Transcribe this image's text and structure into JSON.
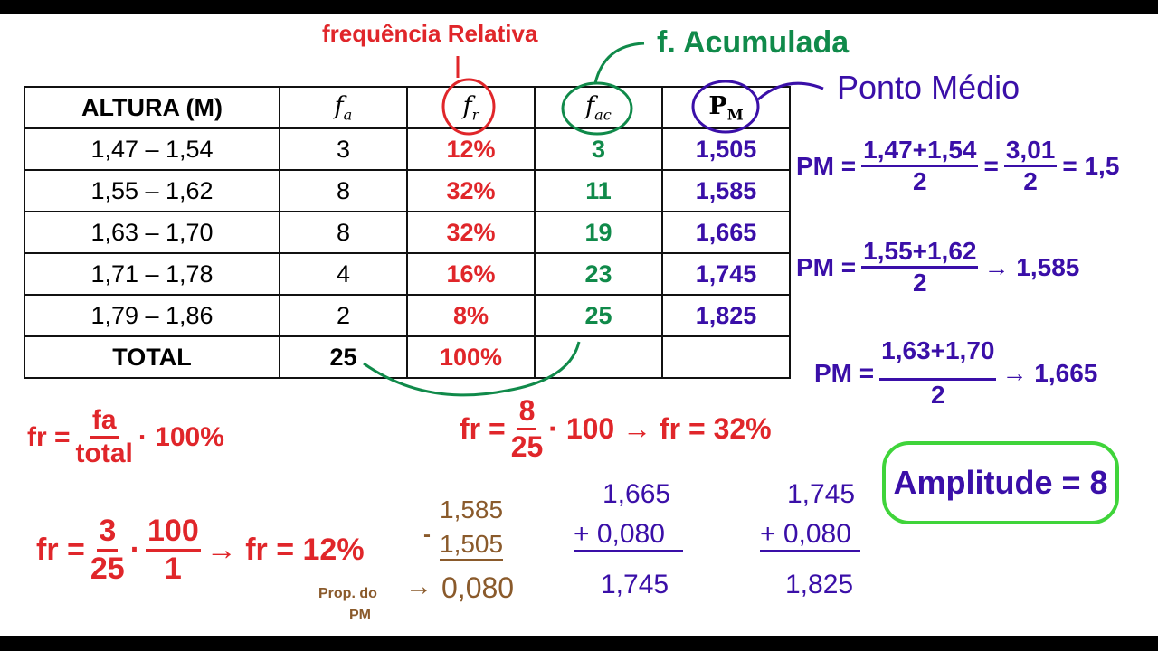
{
  "annotations": {
    "freq_relativa": "frequência Relativa",
    "f_acumulada": "f. Acumulada",
    "ponto_medio": "Ponto Médio",
    "amplitude": "Amplitude = 8"
  },
  "table": {
    "headers": [
      "ALTURA (M)",
      "f",
      "f",
      "f",
      "P"
    ],
    "header_subs": [
      "",
      "a",
      "r",
      "ac",
      "M"
    ],
    "rows": [
      [
        "1,47 – 1,54",
        "3",
        "12%",
        "3",
        "1,505"
      ],
      [
        "1,55 – 1,62",
        "8",
        "32%",
        "11",
        "1,585"
      ],
      [
        "1,63 – 1,70",
        "8",
        "32%",
        "19",
        "1,665"
      ],
      [
        "1,71 – 1,78",
        "4",
        "16%",
        "23",
        "1,745"
      ],
      [
        "1,79 – 1,86",
        "2",
        "8%",
        "25",
        "1,825"
      ]
    ],
    "total": [
      "TOTAL",
      "25",
      "100%",
      "",
      ""
    ]
  },
  "formulas": {
    "pm1": {
      "lhs": "PM =",
      "num": "1,47+1,54",
      "den": "2",
      "eq": "=",
      "num2": "3,01",
      "den2": "2",
      "res": "= 1,5"
    },
    "pm2": {
      "lhs": "PM =",
      "num": "1,55+1,62",
      "den": "2",
      "res": "→ 1,585"
    },
    "pm3": {
      "lhs": "PM =",
      "num": "1,63+1,70",
      "den": "2",
      "res": "→ 1,665"
    },
    "fr_general": {
      "lhs": "fr =",
      "num": "fa",
      "den": "total",
      "rest": "· 100%"
    },
    "fr_example1": {
      "lhs": "fr =",
      "num": "3",
      "den": "25",
      "dot": "·",
      "num2": "100",
      "den2": "1",
      "res": "→ fr = 12%"
    },
    "fr_example2": {
      "lhs": "fr =",
      "num": "8",
      "den": "25",
      "res": "· 100 → fr = 32%"
    },
    "sub": {
      "minus": "-",
      "a": "1,585",
      "b": "1,505",
      "r": "0,080",
      "label1": "Prop. do",
      "label2": "PM",
      "arrow": "→"
    },
    "add1": {
      "a": "1,665",
      "b": "+ 0,080",
      "r": "1,745"
    },
    "add2": {
      "a": "1,745",
      "b": "+ 0,080",
      "r": "1,825"
    }
  },
  "colors": {
    "red": "#e0262a",
    "green": "#108a4a",
    "purple": "#3a0fa8",
    "brown": "#8a5a2b",
    "lime": "#3fd43a"
  }
}
